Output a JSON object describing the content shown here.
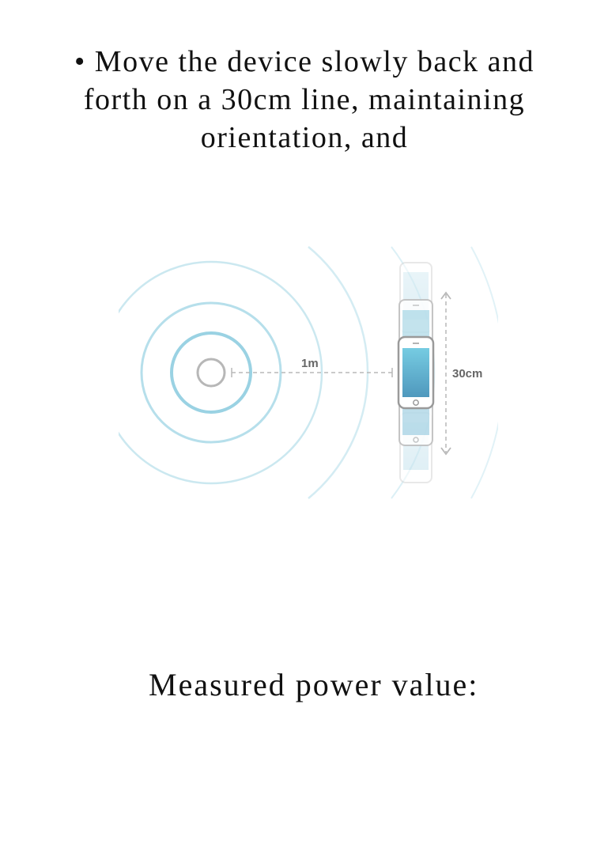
{
  "instruction": {
    "text": "• Move the device slowly back and forth on a 30cm line, maintaining orientation, and"
  },
  "illustration": {
    "distance_label": "1m",
    "travel_label": "30cm",
    "colors": {
      "ring_inner": "#9fd3e2",
      "ring_outer": "#cde7ef",
      "beacon_outline": "#b7b7b7",
      "guide_line": "#b8b8b8",
      "phone_outline": "#9a9a9a",
      "screen_top": "#70c7dd",
      "screen_bottom": "#4f9fc0"
    }
  },
  "measured": {
    "label": "Measured power value:",
    "value": ""
  }
}
